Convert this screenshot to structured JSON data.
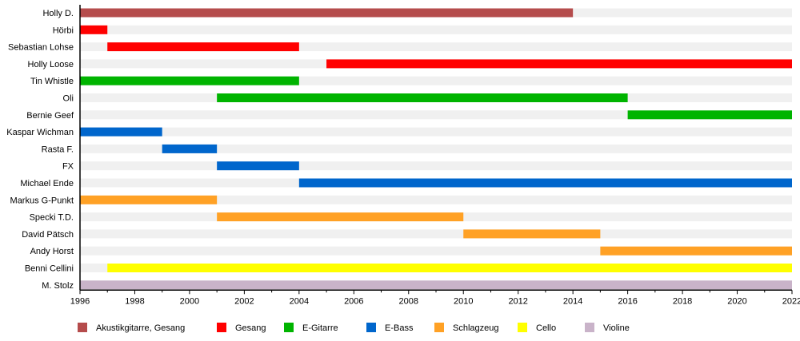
{
  "chart_data": {
    "type": "timeline",
    "title": "",
    "xlim": [
      1996,
      2022
    ],
    "x_ticks": [
      1996,
      1998,
      2000,
      2002,
      2004,
      2006,
      2008,
      2010,
      2012,
      2014,
      2016,
      2018,
      2020,
      2022
    ],
    "legend_position": "bottom",
    "roles": [
      {
        "name": "Akustikgitarre, Gesang",
        "color": "#b54c4c"
      },
      {
        "name": "Gesang",
        "color": "#ff0000"
      },
      {
        "name": "E-Gitarre",
        "color": "#00b400"
      },
      {
        "name": "E-Bass",
        "color": "#0066cc"
      },
      {
        "name": "Schlagzeug",
        "color": "#ffa125"
      },
      {
        "name": "Cello",
        "color": "#ffff00"
      },
      {
        "name": "Violine",
        "color": "#c9b3c9"
      }
    ],
    "members": [
      {
        "name": "Holly D.",
        "role": 0,
        "start": 1996,
        "end": 2014
      },
      {
        "name": "Hörbi",
        "role": 1,
        "start": 1996,
        "end": 1997
      },
      {
        "name": "Sebastian Lohse",
        "role": 1,
        "start": 1997,
        "end": 2004
      },
      {
        "name": "Holly Loose",
        "role": 1,
        "start": 2005,
        "end": 2022
      },
      {
        "name": "Tin Whistle",
        "role": 2,
        "start": 1996,
        "end": 2004
      },
      {
        "name": "Oli",
        "role": 2,
        "start": 2001,
        "end": 2016
      },
      {
        "name": "Bernie Geef",
        "role": 2,
        "start": 2016,
        "end": 2022
      },
      {
        "name": "Kaspar Wichman",
        "role": 3,
        "start": 1996,
        "end": 1999
      },
      {
        "name": "Rasta F.",
        "role": 3,
        "start": 1999,
        "end": 2001
      },
      {
        "name": "FX",
        "role": 3,
        "start": 2001,
        "end": 2004
      },
      {
        "name": "Michael Ende",
        "role": 3,
        "start": 2004,
        "end": 2022
      },
      {
        "name": "Markus G-Punkt",
        "role": 4,
        "start": 1996,
        "end": 2001
      },
      {
        "name": "Specki T.D.",
        "role": 4,
        "start": 2001,
        "end": 2010
      },
      {
        "name": "David Pätsch",
        "role": 4,
        "start": 2010,
        "end": 2015
      },
      {
        "name": "Andy Horst",
        "role": 4,
        "start": 2015,
        "end": 2022
      },
      {
        "name": "Benni Cellini",
        "role": 5,
        "start": 1997,
        "end": 2022
      },
      {
        "name": "M. Stolz",
        "role": 6,
        "start": 1996,
        "end": 2022
      }
    ]
  }
}
